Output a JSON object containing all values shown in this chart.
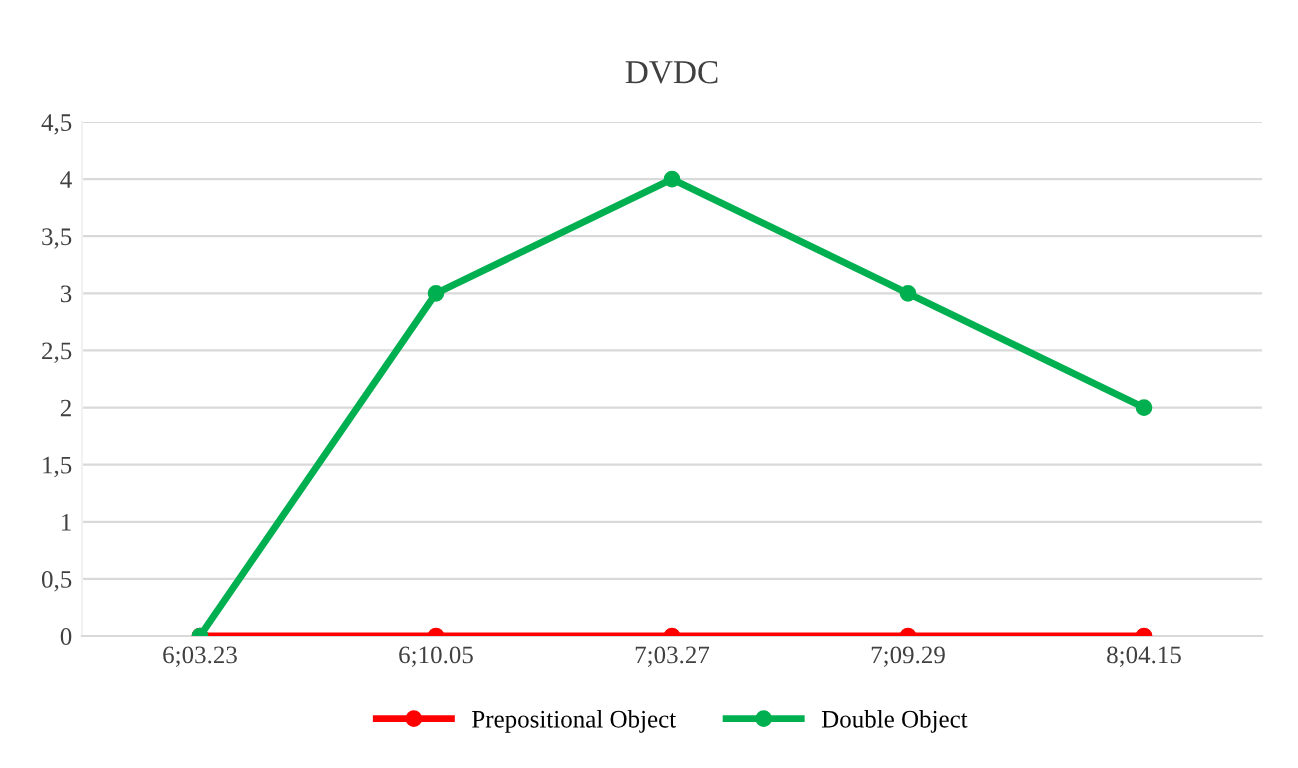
{
  "chart_data": {
    "type": "line",
    "title": "DVDC",
    "categories": [
      "6;03.23",
      "6;10.05",
      "7;03.27",
      "7;09.29",
      "8;04.15"
    ],
    "series": [
      {
        "name": "Prepositional Object",
        "color": "#ff0000",
        "values": [
          0,
          0,
          0,
          0,
          0
        ]
      },
      {
        "name": "Double Object",
        "color": "#00b050",
        "values": [
          0,
          3,
          4,
          3,
          2
        ]
      }
    ],
    "ylim": [
      0,
      4.5
    ],
    "yticks": [
      0,
      {
        "value": 0.5,
        "label": "0,5"
      },
      1,
      {
        "value": 1.5,
        "label": "1,5"
      },
      2,
      {
        "value": 2.5,
        "label": "2,5"
      },
      3,
      {
        "value": 3.5,
        "label": "3,5"
      },
      4,
      {
        "value": 4.5,
        "label": "4,5"
      }
    ],
    "grid": "y",
    "legend": "bottom",
    "marker": "circle",
    "line_style": "solid"
  }
}
